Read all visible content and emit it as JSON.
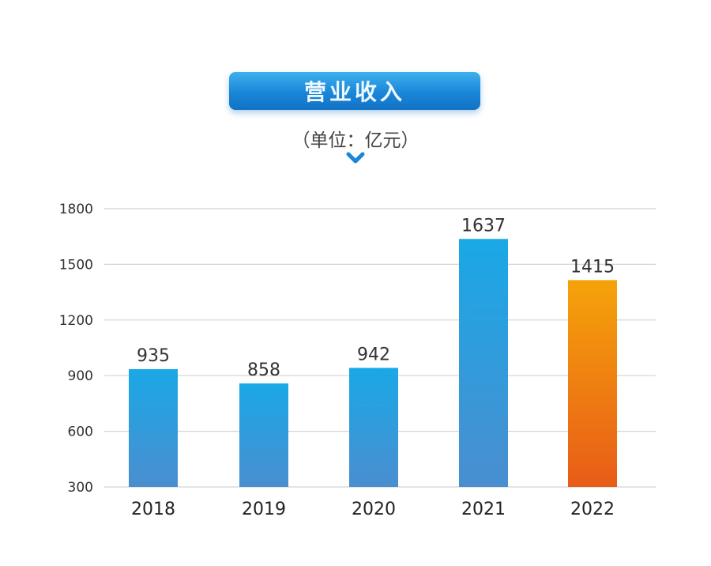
{
  "chart_data": {
    "type": "bar",
    "title": "营业收入",
    "subtitle": "（单位：亿元）",
    "categories": [
      "2018",
      "2019",
      "2020",
      "2021",
      "2022"
    ],
    "values": [
      935,
      858,
      942,
      1637,
      1415
    ],
    "ylim": [
      300,
      1800
    ],
    "yticks": [
      300,
      600,
      900,
      1200,
      1500,
      1800
    ],
    "grid": true,
    "colors": {
      "bar_top": "#1aa8e6",
      "bar_bottom": "#4a8ed0",
      "highlight_top": "#f5a30a",
      "highlight_bottom": "#e85c18",
      "title_bg": "#1a86d8"
    },
    "highlight_category": "2022"
  }
}
